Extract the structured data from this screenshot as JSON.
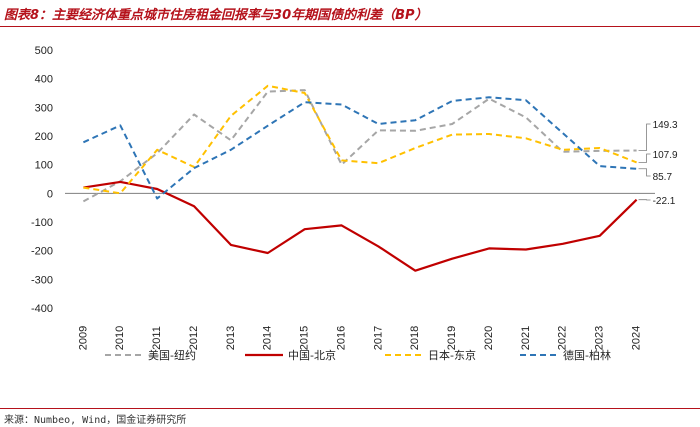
{
  "header": {
    "title": "图表8：主要经济体重点城市住房租金回报率与30年期国债的利差（BP）"
  },
  "footer": {
    "source": "来源：Numbeo, Wind，国金证券研究所"
  },
  "chart_data": {
    "type": "line",
    "x": [
      "2009",
      "2010",
      "2011",
      "2012",
      "2013",
      "2014",
      "2015",
      "2016",
      "2017",
      "2018",
      "2019",
      "2020",
      "2021",
      "2022",
      "2023",
      "2024"
    ],
    "ylim": [
      -400,
      500
    ],
    "yticks": [
      -400,
      -300,
      -200,
      -100,
      0,
      100,
      200,
      300,
      400,
      500
    ],
    "grid": false,
    "legend_position": "bottom",
    "series": [
      {
        "name": "美国-纽约",
        "color": "#a6a6a6",
        "dash": "dashed",
        "values": [
          -28,
          42,
          140,
          275,
          185,
          355,
          360,
          100,
          220,
          218,
          242,
          330,
          265,
          145,
          148,
          149.3
        ]
      },
      {
        "name": "中国-北京",
        "color": "#c00000",
        "dash": "solid",
        "values": [
          20,
          40,
          15,
          -45,
          -180,
          -208,
          -125,
          -112,
          -185,
          -270,
          -228,
          -192,
          -196,
          -176,
          -148,
          -22.1
        ]
      },
      {
        "name": "日本-东京",
        "color": "#ffc000",
        "dash": "dashed",
        "values": [
          20,
          0,
          152,
          92,
          270,
          375,
          350,
          115,
          105,
          158,
          205,
          207,
          192,
          152,
          158,
          107.9
        ]
      },
      {
        "name": "德国-柏林",
        "color": "#2e75b6",
        "dash": "dashed",
        "values": [
          178,
          237,
          -18,
          88,
          152,
          236,
          318,
          310,
          242,
          255,
          322,
          335,
          325,
          210,
          95,
          85.7
        ]
      }
    ],
    "annotations": [
      "149.3",
      "107.9",
      "85.7",
      "-22.1"
    ]
  }
}
